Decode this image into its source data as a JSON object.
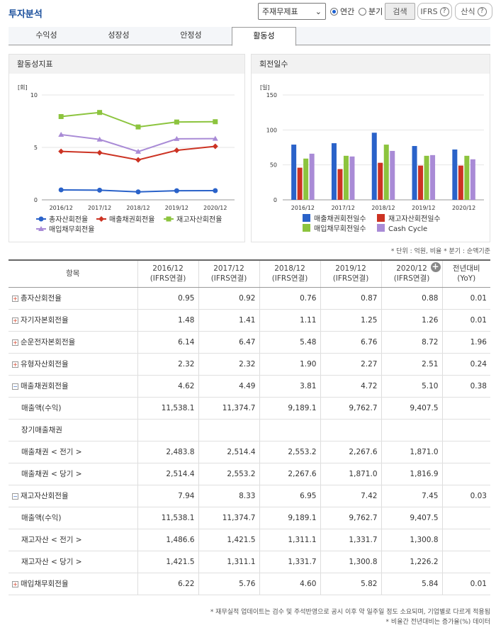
{
  "header": {
    "title": "투자분석",
    "report_select": "주재무제표",
    "radio_annual": "연간",
    "radio_quarter": "분기",
    "search_button": "검색",
    "ifrs_button": "IFRS",
    "help_button": "산식",
    "help_symbol": "?"
  },
  "tabs": [
    "수익성",
    "성장성",
    "안정성",
    "활동성"
  ],
  "active_tab": "활동성",
  "left_chart": {
    "title": "활동성지표"
  },
  "right_chart": {
    "title": "회전일수"
  },
  "chart_data": [
    {
      "type": "line",
      "title": "활동성지표",
      "ylabel": "[회]",
      "ylim": [
        0,
        10
      ],
      "yticks": [
        0,
        5,
        10
      ],
      "categories": [
        "2016/12",
        "2017/12",
        "2018/12",
        "2019/12",
        "2020/12"
      ],
      "series": [
        {
          "name": "총자산회전율",
          "color": "#2a62c9",
          "marker": "circle",
          "values": [
            0.95,
            0.92,
            0.76,
            0.87,
            0.88
          ]
        },
        {
          "name": "매출채권회전율",
          "color": "#cc3323",
          "marker": "diamond",
          "values": [
            4.62,
            4.49,
            3.81,
            4.72,
            5.1
          ]
        },
        {
          "name": "재고자산회전율",
          "color": "#8cc43e",
          "marker": "square",
          "values": [
            7.94,
            8.33,
            6.95,
            7.42,
            7.45
          ]
        },
        {
          "name": "매입채무회전율",
          "color": "#a98bd6",
          "marker": "triangle",
          "values": [
            6.22,
            5.76,
            4.6,
            5.82,
            5.84
          ]
        }
      ]
    },
    {
      "type": "bar",
      "title": "회전일수",
      "ylabel": "[일]",
      "ylim": [
        0,
        150
      ],
      "yticks": [
        0,
        50,
        100,
        150
      ],
      "categories": [
        "2016/12",
        "2017/12",
        "2018/12",
        "2019/12",
        "2020/12"
      ],
      "series": [
        {
          "name": "매출채권회전일수",
          "color": "#2a62c9",
          "values": [
            79,
            81,
            96,
            77,
            72
          ]
        },
        {
          "name": "재고자산회전일수",
          "color": "#cc3323",
          "values": [
            46,
            44,
            53,
            49,
            49
          ]
        },
        {
          "name": "매입채무회전일수",
          "color": "#8cc43e",
          "values": [
            59,
            63,
            79,
            63,
            63
          ]
        },
        {
          "name": "Cash Cycle",
          "color": "#a98bd6",
          "values": [
            66,
            62,
            70,
            64,
            58
          ]
        }
      ]
    }
  ],
  "note": "* 단위 : 억원, 비율 * 분기 : 순액기준",
  "table": {
    "headers": [
      [
        "항목"
      ],
      [
        "2016/12",
        "(IFRS연결)"
      ],
      [
        "2017/12",
        "(IFRS연결)"
      ],
      [
        "2018/12",
        "(IFRS연결)"
      ],
      [
        "2019/12",
        "(IFRS연결)"
      ],
      [
        "2020/12",
        "(IFRS연결)"
      ],
      [
        "전년대비",
        "(YoY)"
      ]
    ],
    "rows": [
      {
        "label": "총자산회전율",
        "toggle": "+",
        "values": [
          "0.95",
          "0.92",
          "0.76",
          "0.87",
          "0.88",
          "0.01"
        ]
      },
      {
        "label": "자기자본회전율",
        "toggle": "+",
        "values": [
          "1.48",
          "1.41",
          "1.11",
          "1.25",
          "1.26",
          "0.01"
        ]
      },
      {
        "label": "순운전자본회전율",
        "toggle": "+",
        "values": [
          "6.14",
          "6.47",
          "5.48",
          "6.76",
          "8.72",
          "1.96"
        ]
      },
      {
        "label": "유형자산회전율",
        "toggle": "+",
        "values": [
          "2.32",
          "2.32",
          "1.90",
          "2.27",
          "2.51",
          "0.24"
        ]
      },
      {
        "label": "매출채권회전율",
        "toggle": "-",
        "values": [
          "4.62",
          "4.49",
          "3.81",
          "4.72",
          "5.10",
          "0.38"
        ]
      },
      {
        "label": "매출액(수익)",
        "toggle": "",
        "values": [
          "11,538.1",
          "11,374.7",
          "9,189.1",
          "9,762.7",
          "9,407.5",
          ""
        ]
      },
      {
        "label": "장기매출채권",
        "toggle": "",
        "values": [
          "",
          "",
          "",
          "",
          "",
          ""
        ]
      },
      {
        "label": "매출채권 < 전기 >",
        "toggle": "",
        "values": [
          "2,483.8",
          "2,514.4",
          "2,553.2",
          "2,267.6",
          "1,871.0",
          ""
        ]
      },
      {
        "label": "매출채권 < 당기 >",
        "toggle": "",
        "values": [
          "2,514.4",
          "2,553.2",
          "2,267.6",
          "1,871.0",
          "1,816.9",
          ""
        ]
      },
      {
        "label": "재고자산회전율",
        "toggle": "-",
        "values": [
          "7.94",
          "8.33",
          "6.95",
          "7.42",
          "7.45",
          "0.03"
        ]
      },
      {
        "label": "매출액(수익)",
        "toggle": "",
        "values": [
          "11,538.1",
          "11,374.7",
          "9,189.1",
          "9,762.7",
          "9,407.5",
          ""
        ]
      },
      {
        "label": "재고자산 < 전기 >",
        "toggle": "",
        "values": [
          "1,486.6",
          "1,421.5",
          "1,311.1",
          "1,331.7",
          "1,300.8",
          ""
        ]
      },
      {
        "label": "재고자산 < 당기 >",
        "toggle": "",
        "values": [
          "1,421.5",
          "1,311.1",
          "1,331.7",
          "1,300.8",
          "1,226.2",
          ""
        ]
      },
      {
        "label": "매입채무회전율",
        "toggle": "+",
        "values": [
          "6.22",
          "5.76",
          "4.60",
          "5.82",
          "5.84",
          "0.01"
        ]
      }
    ]
  },
  "footnotes": [
    "* 재무실적 업데이트는 검수 및 주석반영으로 공시 이후 약 일주일 정도 소요되며, 기업별로 다르게 적용됨",
    "* 비율간 전년대비는 증가율(%) 데이터"
  ],
  "colors": {
    "title": "#1a4f9c",
    "radio_on": "#1a5fd1"
  }
}
